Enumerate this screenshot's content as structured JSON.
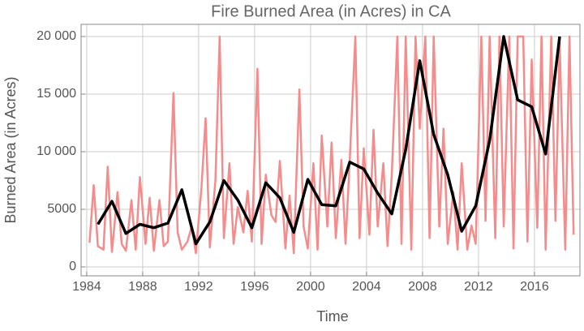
{
  "chart_data": {
    "type": "line",
    "title": "Fire Burned Area (in Acres) in CA",
    "xlabel": "Time",
    "ylabel": "Burned Area (in Acres)",
    "xlim": [
      1983.6,
      2019.25
    ],
    "ylim": [
      -775,
      21056
    ],
    "xticks": [
      1984,
      1988,
      1992,
      1996,
      2000,
      2004,
      2008,
      2012,
      2016
    ],
    "yticks": [
      0,
      5000,
      {
        "value": 10000,
        "label": "10 000"
      },
      {
        "value": 15000,
        "label": "15 000"
      },
      {
        "value": 20000,
        "label": "20 000"
      }
    ],
    "grid": true,
    "series": [
      {
        "color": "#f58b8b",
        "width": 2.5,
        "x": [
          1984.2,
          1984.5,
          1984.8,
          1985.2,
          1985.5,
          1985.8,
          1986.2,
          1986.5,
          1986.8,
          1987.2,
          1987.5,
          1987.8,
          1988.2,
          1988.5,
          1988.8,
          1989.2,
          1989.5,
          1989.8,
          1990.2,
          1990.5,
          1990.8,
          1991.2,
          1991.5,
          1991.8,
          1992.2,
          1992.5,
          1992.8,
          1993.2,
          1993.5,
          1993.8,
          1994.2,
          1994.5,
          1994.8,
          1995.2,
          1995.5,
          1995.8,
          1996.2,
          1996.5,
          1996.8,
          1997.2,
          1997.5,
          1997.8,
          1998.2,
          1998.5,
          1998.8,
          1999.2,
          1999.5,
          1999.8,
          2000.2,
          2000.5,
          2000.8,
          2001.2,
          2001.5,
          2001.8,
          2002.2,
          2002.5,
          2002.8,
          2003.2,
          2003.5,
          2003.8,
          2004.2,
          2004.5,
          2004.8,
          2005.2,
          2005.5,
          2005.8,
          2006.2,
          2006.5,
          2006.8,
          2007.2,
          2007.5,
          2007.8,
          2008.2,
          2008.5,
          2008.8,
          2009.2,
          2009.5,
          2009.8,
          2010.2,
          2010.5,
          2010.8,
          2011.2,
          2011.5,
          2011.8,
          2012.2,
          2012.5,
          2012.8,
          2013.2,
          2013.5,
          2013.8,
          2014.2,
          2014.5,
          2014.8,
          2015.2,
          2015.5,
          2015.8,
          2016.2,
          2016.5,
          2016.8,
          2017.2,
          2017.5,
          2017.8,
          2018.2,
          2018.5,
          2018.8
        ],
        "values": [
          2100,
          7100,
          1800,
          1500,
          8700,
          1300,
          6500,
          2000,
          1400,
          5800,
          1500,
          7800,
          2000,
          6000,
          1400,
          5800,
          1800,
          2200,
          15100,
          3000,
          1500,
          2200,
          3500,
          1200,
          6900,
          12900,
          1700,
          7500,
          20000,
          2500,
          9000,
          2000,
          5200,
          3000,
          6600,
          2200,
          17200,
          2000,
          8000,
          4500,
          3900,
          9200,
          1600,
          6200,
          1200,
          15400,
          3500,
          1600,
          9000,
          1500,
          11400,
          3500,
          10800,
          2500,
          9300,
          2000,
          9300,
          20000,
          2500,
          10300,
          2800,
          11900,
          3500,
          9000,
          1800,
          8000,
          20000,
          2000,
          20000,
          1500,
          20000,
          12000,
          20000,
          2500,
          20000,
          3500,
          12000,
          2000,
          6500,
          1500,
          9000,
          1500,
          3600,
          2000,
          20000,
          4000,
          20000,
          2500,
          20000,
          3500,
          20000,
          1600,
          20000,
          20000,
          2200,
          18000,
          3400,
          20000,
          1500,
          20000,
          4000,
          19500,
          1500,
          20000,
          2800
        ]
      },
      {
        "color": "#000000",
        "width": 3.5,
        "x": [
          1984.8,
          1985.8,
          1986.8,
          1987.8,
          1988.8,
          1989.8,
          1990.8,
          1991.8,
          1992.8,
          1993.8,
          1994.8,
          1995.8,
          1996.8,
          1997.8,
          1998.8,
          1999.8,
          2000.8,
          2001.8,
          2002.8,
          2003.8,
          2004.8,
          2005.8,
          2006.8,
          2007.8,
          2008.8,
          2009.8,
          2010.8,
          2011.8,
          2012.8,
          2013.8,
          2014.8,
          2015.8,
          2016.8,
          2017.8
        ],
        "values": [
          3700,
          5700,
          2900,
          3700,
          3400,
          3800,
          6700,
          2000,
          3900,
          7500,
          5800,
          3400,
          7300,
          6000,
          3000,
          7600,
          5400,
          5300,
          9100,
          8500,
          6400,
          4600,
          10200,
          17900,
          11500,
          8000,
          3100,
          5300,
          11000,
          20000,
          14500,
          13900,
          9800,
          20000
        ]
      }
    ]
  }
}
